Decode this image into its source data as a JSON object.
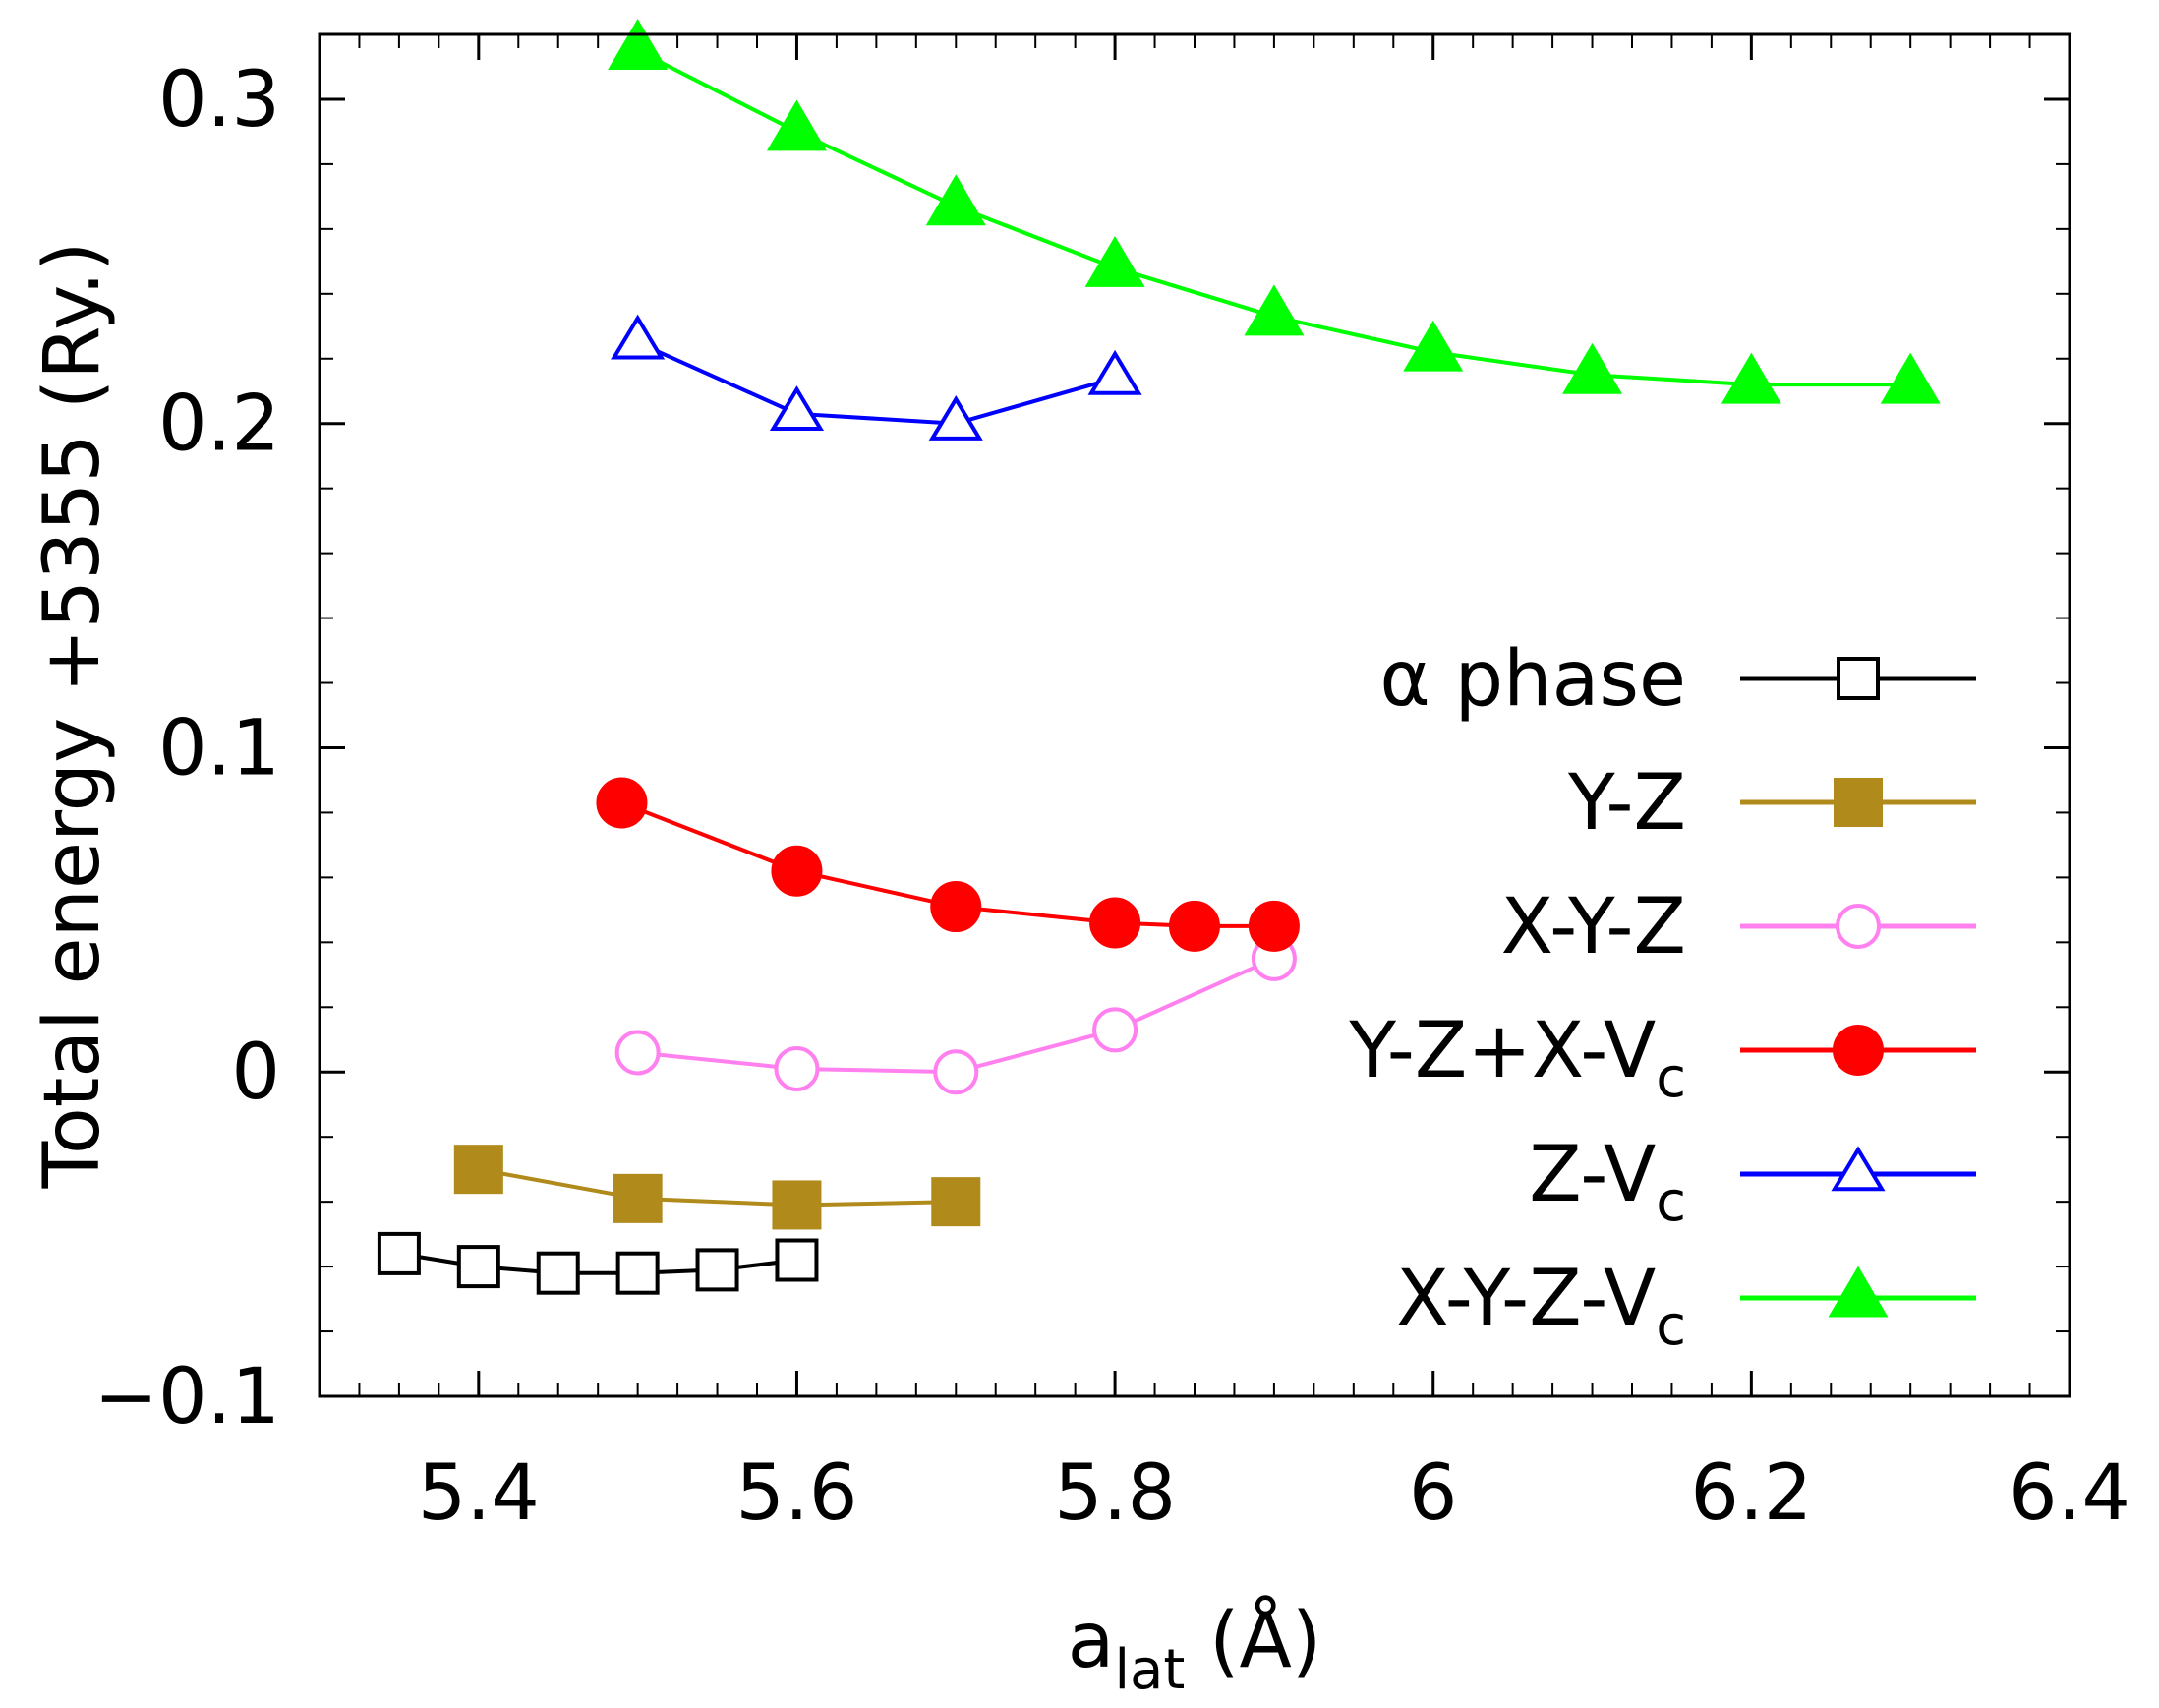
{
  "chart_data": {
    "type": "line",
    "title": "",
    "xlabel": {
      "main": "a",
      "sub": "lat",
      "suffix": " (Å)"
    },
    "ylabel": "Total energy +5355 (Ry.)",
    "xlim": [
      5.3,
      6.4
    ],
    "ylim": [
      -0.1,
      0.32
    ],
    "x_ticks": [
      5.4,
      5.6,
      5.8,
      6.0,
      6.2,
      6.4
    ],
    "x_tick_labels": [
      "5.4",
      "5.6",
      "5.8",
      "6",
      "6.2",
      "6.4"
    ],
    "y_ticks": [
      -0.1,
      0,
      0.1,
      0.2,
      0.3
    ],
    "y_tick_labels": [
      "−0.1",
      "0",
      "0.1",
      "0.2",
      "0.3"
    ],
    "x_minor_step": 0.025,
    "y_minor_step": 0.02,
    "grid": false,
    "legend_position": "right",
    "series": [
      {
        "name": "α phase",
        "label": {
          "main": "α phase",
          "sub": ""
        },
        "color": "#000000",
        "marker": "square",
        "filled": false,
        "x": [
          5.35,
          5.4,
          5.45,
          5.5,
          5.55,
          5.6
        ],
        "y": [
          -0.056,
          -0.06,
          -0.062,
          -0.062,
          -0.061,
          -0.058
        ]
      },
      {
        "name": "Y-Z",
        "label": {
          "main": "Y-Z",
          "sub": ""
        },
        "color": "#b08a1a",
        "marker": "square",
        "filled": true,
        "x": [
          5.4,
          5.5,
          5.6,
          5.7
        ],
        "y": [
          -0.03,
          -0.039,
          -0.041,
          -0.04
        ]
      },
      {
        "name": "X-Y-Z",
        "label": {
          "main": "X-Y-Z",
          "sub": ""
        },
        "color": "#ff80ee",
        "marker": "circle",
        "filled": false,
        "x": [
          5.5,
          5.6,
          5.7,
          5.8,
          5.9
        ],
        "y": [
          0.006,
          0.001,
          0.0,
          0.013,
          0.035
        ]
      },
      {
        "name": "Y-Z+X-Vc",
        "label": {
          "main": "Y-Z+X-V",
          "sub": "c"
        },
        "color": "#ff0000",
        "marker": "circle",
        "filled": true,
        "x": [
          5.49,
          5.6,
          5.7,
          5.8,
          5.85,
          5.9
        ],
        "y": [
          0.083,
          0.062,
          0.051,
          0.046,
          0.045,
          0.045
        ]
      },
      {
        "name": "Z-Vc",
        "label": {
          "main": "Z-V",
          "sub": "c"
        },
        "color": "#0000ff",
        "marker": "triangle",
        "filled": false,
        "x": [
          5.5,
          5.6,
          5.7,
          5.8
        ],
        "y": [
          0.225,
          0.203,
          0.2,
          0.214
        ]
      },
      {
        "name": "X-Y-Z-Vc",
        "label": {
          "main": "X-Y-Z-V",
          "sub": "c"
        },
        "color": "#00ff00",
        "marker": "triangle",
        "filled": true,
        "x": [
          5.5,
          5.6,
          5.7,
          5.8,
          5.9,
          6.0,
          6.1,
          6.2,
          6.3
        ],
        "y": [
          0.315,
          0.29,
          0.267,
          0.248,
          0.233,
          0.222,
          0.215,
          0.212,
          0.212
        ]
      }
    ]
  }
}
